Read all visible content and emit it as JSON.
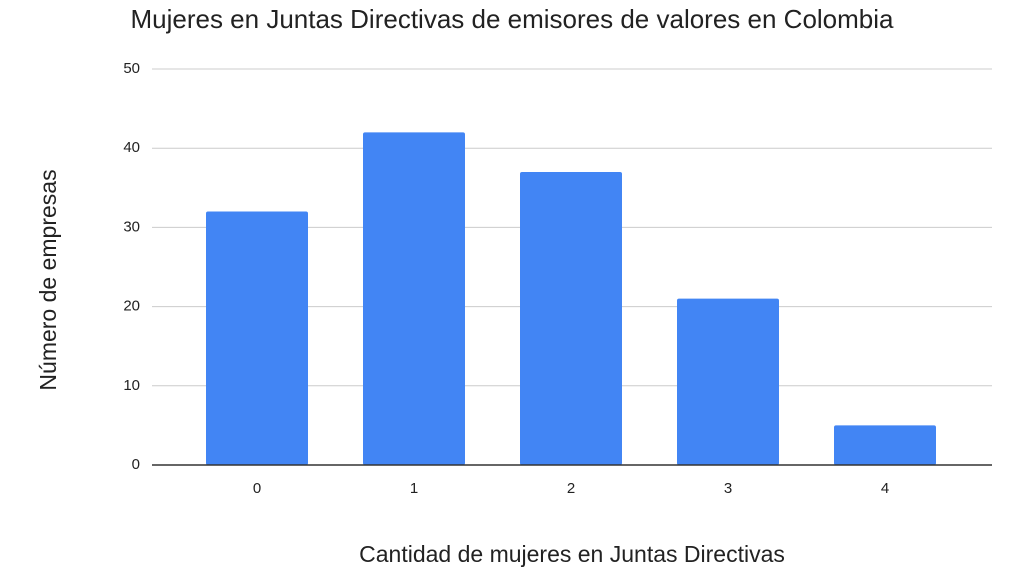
{
  "chart_data": {
    "type": "bar",
    "title": "Mujeres en Juntas Directivas de emisores de valores en Colombia",
    "x_label": "Cantidad de mujeres en Juntas Directivas",
    "y_label": "Número de empresas",
    "categories": [
      "0",
      "1",
      "2",
      "3",
      "4"
    ],
    "values": [
      32,
      42,
      37,
      21,
      5
    ],
    "color": "#4285f4",
    "ylim": [
      0,
      50
    ],
    "yticks": [
      0,
      10,
      20,
      30,
      40,
      50
    ],
    "grid": true
  }
}
